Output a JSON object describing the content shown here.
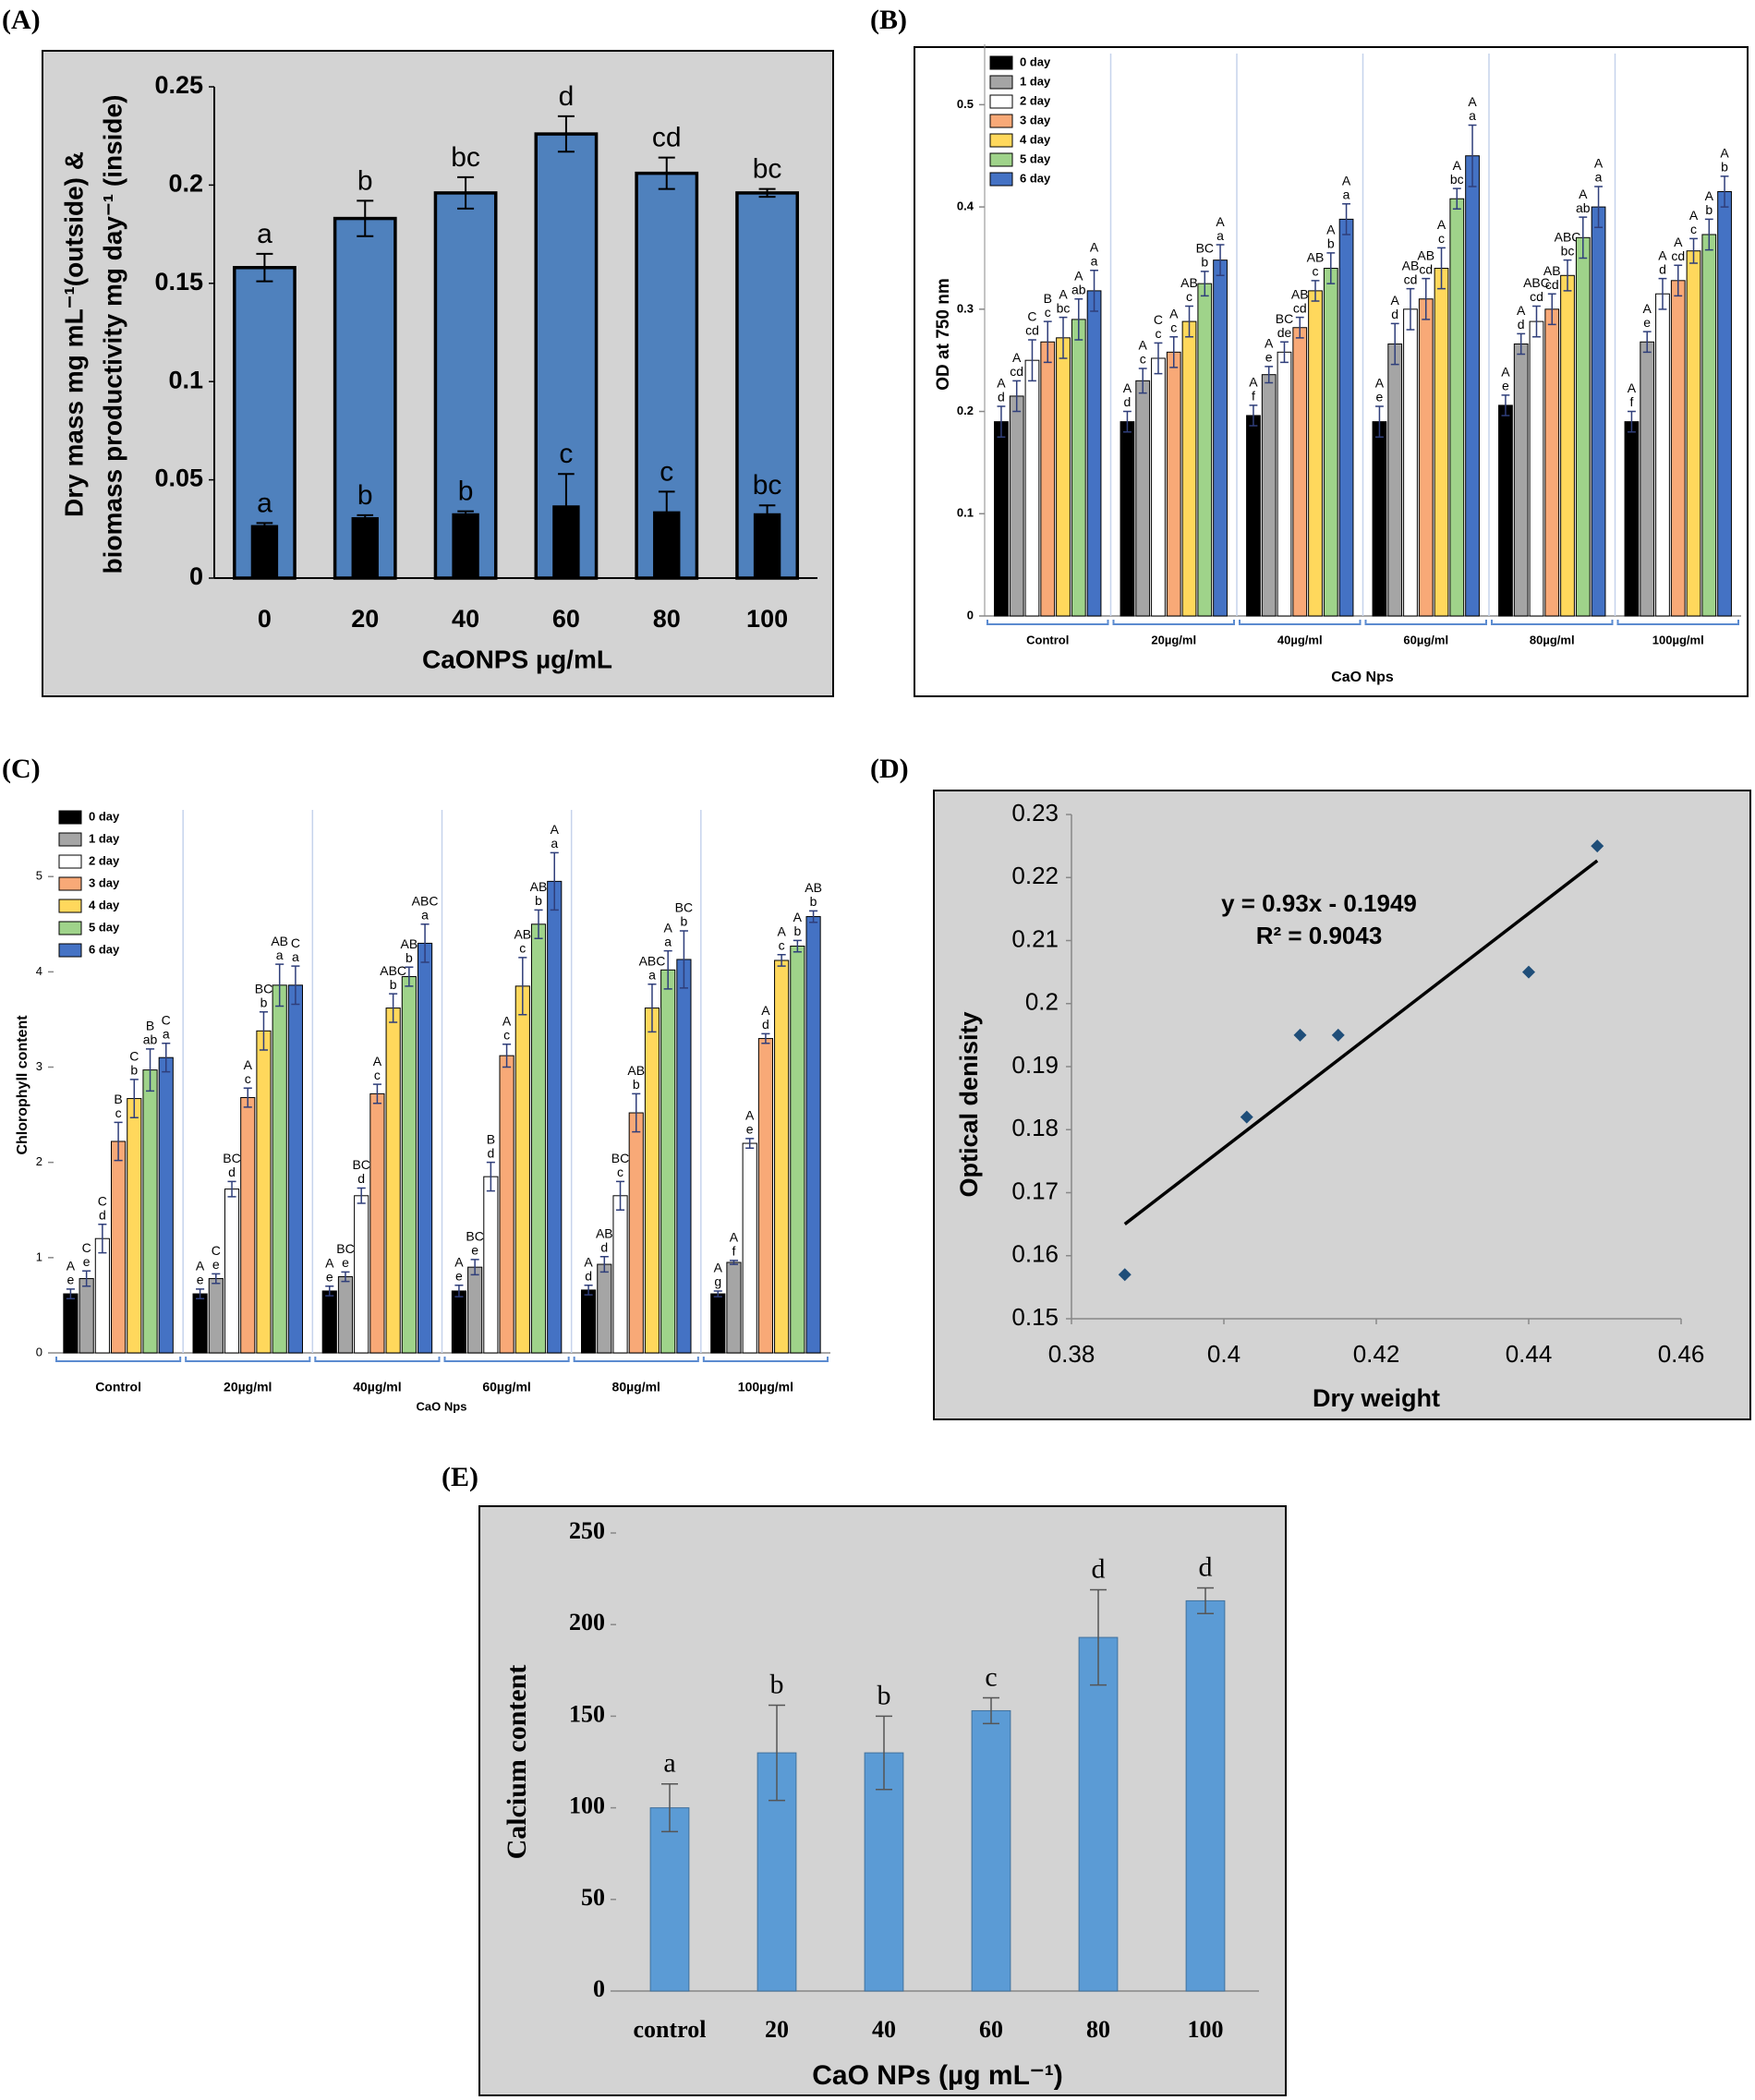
{
  "chart_data": [
    {
      "panel": "(A)",
      "type": "bar",
      "barmode": "overlay",
      "y_label": [
        "Dry mass mg mL⁻¹(outside) &",
        "biomass productivity mg day⁻¹ (inside)"
      ],
      "x_label": "CaONPS µg/mL",
      "categories": [
        "0",
        "20",
        "40",
        "60",
        "80",
        "100"
      ],
      "series": [
        {
          "color": "#4f81bd",
          "values": [
            0.158,
            0.183,
            0.196,
            0.226,
            0.206,
            0.196
          ],
          "errors": [
            0.007,
            0.009,
            0.008,
            0.009,
            0.008,
            0.002
          ],
          "letters": [
            "a",
            "b",
            "bc",
            "d",
            "cd",
            "bc"
          ]
        },
        {
          "color": "#000000",
          "values": [
            0.027,
            0.031,
            0.033,
            0.037,
            0.034,
            0.033
          ],
          "errors": [
            0.001,
            0.001,
            0.001,
            0.016,
            0.01,
            0.004
          ],
          "letters": [
            "a",
            "b",
            "b",
            "c",
            "c",
            "bc"
          ]
        }
      ],
      "ylim": [
        0,
        0.25
      ],
      "yticks": [
        0,
        0.05,
        0.1,
        0.15,
        0.2,
        0.25
      ]
    },
    {
      "panel": "(B)",
      "type": "bar",
      "barmode": "group",
      "legend": "upper left",
      "y_label": "OD at 750 nm",
      "x_label": "CaO Nps",
      "categories": [
        "Control",
        "20µg/ml",
        "40µg/ml",
        "60µg/ml",
        "80µg/ml",
        "100µg/ml"
      ],
      "series": [
        {
          "name": "0 day",
          "color": "#000000",
          "values": [
            0.19,
            0.19,
            0.196,
            0.19,
            0.206,
            0.19
          ],
          "errors": [
            0.015,
            0.01,
            0.01,
            0.015,
            0.01,
            0.01
          ],
          "letters": [
            [
              "A",
              "d"
            ],
            [
              "A",
              "d"
            ],
            [
              "A",
              "f"
            ],
            [
              "A",
              "e"
            ],
            [
              "A",
              "e"
            ],
            [
              "A",
              "f"
            ]
          ]
        },
        {
          "name": "1 day",
          "color": "#a5a5a5",
          "values": [
            0.215,
            0.23,
            0.236,
            0.266,
            0.266,
            0.268
          ],
          "errors": [
            0.015,
            0.012,
            0.008,
            0.02,
            0.01,
            0.01
          ],
          "letters": [
            [
              "A",
              "cd"
            ],
            [
              "A",
              "c"
            ],
            [
              "A",
              "e"
            ],
            [
              "A",
              "d"
            ],
            [
              "A",
              "d"
            ],
            [
              "A",
              "e"
            ]
          ]
        },
        {
          "name": "2 day",
          "color": "#ffffff",
          "values": [
            0.25,
            0.252,
            0.258,
            0.3,
            0.288,
            0.315
          ],
          "errors": [
            0.02,
            0.015,
            0.01,
            0.02,
            0.015,
            0.015
          ],
          "letters": [
            [
              "C",
              "cd"
            ],
            [
              "C",
              "c"
            ],
            [
              "BC",
              "de"
            ],
            [
              "AB",
              "cd"
            ],
            [
              "ABC",
              "cd"
            ],
            [
              "A",
              "d"
            ]
          ]
        },
        {
          "name": "3 day",
          "color": "#f8a977",
          "values": [
            0.268,
            0.258,
            0.282,
            0.31,
            0.3,
            0.328
          ],
          "errors": [
            0.02,
            0.015,
            0.01,
            0.02,
            0.015,
            0.015
          ],
          "letters": [
            [
              "B",
              "c"
            ],
            [
              "A",
              "c"
            ],
            [
              "AB",
              "cd"
            ],
            [
              "AB",
              "cd"
            ],
            [
              "AB",
              "cd"
            ],
            [
              "A",
              "cd"
            ]
          ]
        },
        {
          "name": "4 day",
          "color": "#ffd85c",
          "values": [
            0.272,
            0.288,
            0.318,
            0.34,
            0.333,
            0.357
          ],
          "errors": [
            0.02,
            0.015,
            0.01,
            0.02,
            0.015,
            0.012
          ],
          "letters": [
            [
              "A",
              "bc"
            ],
            [
              "AB",
              "c"
            ],
            [
              "AB",
              "c"
            ],
            [
              "A",
              "c"
            ],
            [
              "ABC",
              "bc"
            ],
            [
              "A",
              "c"
            ]
          ]
        },
        {
          "name": "5 day",
          "color": "#9fd38a",
          "values": [
            0.29,
            0.325,
            0.34,
            0.408,
            0.37,
            0.373
          ],
          "errors": [
            0.02,
            0.012,
            0.015,
            0.01,
            0.02,
            0.015
          ],
          "letters": [
            [
              "A",
              "ab"
            ],
            [
              "BC",
              "b"
            ],
            [
              "A",
              "b"
            ],
            [
              "A",
              "bc"
            ],
            [
              "A",
              "ab"
            ],
            [
              "A",
              "b"
            ]
          ]
        },
        {
          "name": "6 day",
          "color": "#4472c4",
          "values": [
            0.318,
            0.348,
            0.388,
            0.45,
            0.4,
            0.415
          ],
          "errors": [
            0.02,
            0.015,
            0.015,
            0.03,
            0.02,
            0.015
          ],
          "letters": [
            [
              "A",
              "a"
            ],
            [
              "A",
              "a"
            ],
            [
              "A",
              "a"
            ],
            [
              "A",
              "a"
            ],
            [
              "A",
              "a"
            ],
            [
              "A",
              "b"
            ]
          ]
        }
      ],
      "ylim": [
        0,
        0.55
      ],
      "yticks": [
        0,
        0.1,
        0.2,
        0.3,
        0.4,
        0.5
      ]
    },
    {
      "panel": "(C)",
      "type": "bar",
      "barmode": "group",
      "legend": "upper left",
      "y_label": "Chlorophyll content",
      "x_label": "CaO Nps",
      "categories": [
        "Control",
        "20µg/ml",
        "40µg/ml",
        "60µg/ml",
        "80µg/ml",
        "100µg/ml"
      ],
      "series": [
        {
          "name": "0 day",
          "color": "#000000",
          "values": [
            0.62,
            0.62,
            0.65,
            0.65,
            0.66,
            0.62
          ],
          "errors": [
            0.05,
            0.05,
            0.05,
            0.06,
            0.05,
            0.03
          ],
          "letters": [
            [
              "A",
              "e"
            ],
            [
              "A",
              "e"
            ],
            [
              "A",
              "e"
            ],
            [
              "A",
              "e"
            ],
            [
              "A",
              "d"
            ],
            [
              "A",
              "g"
            ]
          ]
        },
        {
          "name": "1 day",
          "color": "#a5a5a5",
          "values": [
            0.78,
            0.78,
            0.8,
            0.9,
            0.93,
            0.95
          ],
          "errors": [
            0.08,
            0.05,
            0.05,
            0.08,
            0.08,
            0.02
          ],
          "letters": [
            [
              "C",
              "e"
            ],
            [
              "C",
              "e"
            ],
            [
              "BC",
              "e"
            ],
            [
              "BC",
              "e"
            ],
            [
              "AB",
              "d"
            ],
            [
              "A",
              "f"
            ]
          ]
        },
        {
          "name": "2 day",
          "color": "#ffffff",
          "values": [
            1.2,
            1.72,
            1.65,
            1.85,
            1.65,
            2.2
          ],
          "errors": [
            0.15,
            0.08,
            0.08,
            0.15,
            0.15,
            0.05
          ],
          "letters": [
            [
              "C",
              "d"
            ],
            [
              "BC",
              "d"
            ],
            [
              "BC",
              "d"
            ],
            [
              "B",
              "d"
            ],
            [
              "BC",
              "c"
            ],
            [
              "A",
              "e"
            ]
          ]
        },
        {
          "name": "3 day",
          "color": "#f8a977",
          "values": [
            2.22,
            2.68,
            2.72,
            3.12,
            2.52,
            3.3
          ],
          "errors": [
            0.2,
            0.1,
            0.1,
            0.12,
            0.2,
            0.05
          ],
          "letters": [
            [
              "B",
              "c"
            ],
            [
              "A",
              "c"
            ],
            [
              "A",
              "c"
            ],
            [
              "A",
              "c"
            ],
            [
              "AB",
              "b"
            ],
            [
              "A",
              "d"
            ]
          ]
        },
        {
          "name": "4 day",
          "color": "#ffd85c",
          "values": [
            2.67,
            3.38,
            3.62,
            3.85,
            3.62,
            4.12
          ],
          "errors": [
            0.2,
            0.2,
            0.15,
            0.3,
            0.25,
            0.06
          ],
          "letters": [
            [
              "C",
              "b"
            ],
            [
              "BC",
              "b"
            ],
            [
              "ABC",
              "b"
            ],
            [
              "AB",
              "c"
            ],
            [
              "ABC",
              "a"
            ],
            [
              "A",
              "c"
            ]
          ]
        },
        {
          "name": "5 day",
          "color": "#9fd38a",
          "values": [
            2.97,
            3.86,
            3.95,
            4.5,
            4.02,
            4.27
          ],
          "errors": [
            0.22,
            0.22,
            0.1,
            0.15,
            0.2,
            0.06
          ],
          "letters": [
            [
              "B",
              "ab"
            ],
            [
              "AB",
              "a"
            ],
            [
              "AB",
              "b"
            ],
            [
              "AB",
              "b"
            ],
            [
              "A",
              "a"
            ],
            [
              "A",
              "b"
            ]
          ]
        },
        {
          "name": "6 day",
          "color": "#4472c4",
          "values": [
            3.1,
            3.86,
            4.3,
            4.95,
            4.13,
            4.58
          ],
          "errors": [
            0.15,
            0.2,
            0.2,
            0.3,
            0.3,
            0.06
          ],
          "letters": [
            [
              "C",
              "a"
            ],
            [
              "C",
              "a"
            ],
            [
              "ABC",
              "a"
            ],
            [
              "A",
              "a"
            ],
            [
              "BC",
              "b"
            ],
            [
              "AB",
              "b"
            ]
          ]
        }
      ],
      "ylim": [
        0,
        5.7
      ],
      "yticks": [
        0,
        1,
        2,
        3,
        4,
        5
      ]
    },
    {
      "panel": "(D)",
      "type": "scatter",
      "color": "#1f4e79",
      "y_label": "Optical denisity",
      "x_label": "Dry weight",
      "x": [
        0.387,
        0.403,
        0.41,
        0.415,
        0.44,
        0.449
      ],
      "y": [
        0.157,
        0.182,
        0.195,
        0.195,
        0.205,
        0.225
      ],
      "trendline": {
        "slope": 0.93,
        "intercept": -0.1949,
        "equation": "y = 0.93x - 0.1949",
        "r2": "R² = 0.9043"
      },
      "xlim": [
        0.38,
        0.46
      ],
      "xticks": [
        0.38,
        0.4,
        0.42,
        0.44,
        0.46
      ],
      "ylim": [
        0.15,
        0.23
      ],
      "yticks": [
        0.15,
        0.16,
        0.17,
        0.18,
        0.19,
        0.2,
        0.21,
        0.22,
        0.23
      ]
    },
    {
      "panel": "(E)",
      "type": "bar",
      "barmode": "overlay",
      "y_label": "Calcium content",
      "x_label": "CaO NPs (µg mL⁻¹)",
      "categories": [
        "control",
        "20",
        "40",
        "60",
        "80",
        "100"
      ],
      "series": [
        {
          "color": "#5b9bd5",
          "values": [
            100,
            130,
            130,
            153,
            193,
            213
          ],
          "errors": [
            13,
            26,
            20,
            7,
            26,
            7
          ],
          "letters": [
            "a",
            "b",
            "b",
            "c",
            "d",
            "d"
          ]
        }
      ],
      "ylim": [
        0,
        250
      ],
      "yticks": [
        0,
        50,
        100,
        150,
        200,
        250
      ]
    }
  ]
}
